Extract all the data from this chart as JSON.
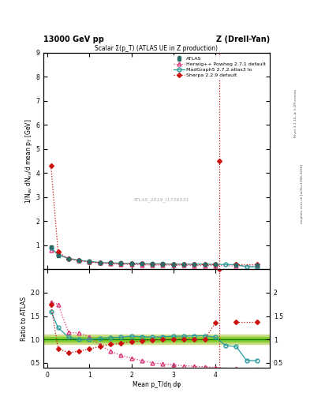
{
  "title_top_left": "13000 GeV pp",
  "title_top_right": "Z (Drell-Yan)",
  "plot_title": "Scalar Σ(p_T) (ATLAS UE in Z production)",
  "watermark": "ATLAS_2019_I1736531",
  "ylabel_main": "1/N_{ev} dN_{ev}/d mean p_T [GeV⁻¹]",
  "ylabel_ratio": "Ratio to ATLAS",
  "xlabel": "Mean p_T/dη dφ",
  "right_label_top": "Rivet 3.1.10, ≥ 3.1M events",
  "right_label_bot": "mcplots.cern.ch [arXiv:1306.3436]",
  "atlas_x": [
    0.08,
    0.25,
    0.5,
    0.75,
    1.0,
    1.25,
    1.5,
    1.75,
    2.0,
    2.25,
    2.5,
    2.75,
    3.0,
    3.25,
    3.5,
    3.75,
    4.0,
    4.5,
    5.0
  ],
  "atlas_y": [
    0.92,
    0.55,
    0.42,
    0.35,
    0.3,
    0.27,
    0.25,
    0.24,
    0.23,
    0.22,
    0.21,
    0.21,
    0.2,
    0.2,
    0.19,
    0.19,
    0.19,
    0.18,
    0.18
  ],
  "atlas_yerr": [
    0.04,
    0.02,
    0.015,
    0.01,
    0.01,
    0.01,
    0.01,
    0.01,
    0.01,
    0.01,
    0.01,
    0.01,
    0.01,
    0.01,
    0.01,
    0.01,
    0.01,
    0.01,
    0.01
  ],
  "herwig_x": [
    0.08,
    0.25,
    0.5,
    0.75,
    1.0,
    1.25,
    1.5,
    1.75,
    2.0,
    2.25,
    2.5,
    2.75,
    3.0,
    3.25,
    3.5,
    3.75,
    4.0,
    4.5,
    5.0
  ],
  "herwig_y": [
    0.8,
    0.62,
    0.46,
    0.38,
    0.3,
    0.25,
    0.22,
    0.2,
    0.19,
    0.18,
    0.17,
    0.17,
    0.16,
    0.16,
    0.15,
    0.15,
    0.15,
    0.13,
    0.13
  ],
  "madgraph_x": [
    0.08,
    0.25,
    0.5,
    0.75,
    1.0,
    1.25,
    1.5,
    1.75,
    2.0,
    2.25,
    2.5,
    2.75,
    3.0,
    3.25,
    3.5,
    3.75,
    4.0,
    4.25,
    4.5,
    4.75,
    5.0
  ],
  "madgraph_y": [
    0.9,
    0.6,
    0.44,
    0.37,
    0.32,
    0.28,
    0.26,
    0.25,
    0.24,
    0.23,
    0.22,
    0.22,
    0.21,
    0.21,
    0.21,
    0.21,
    0.2,
    0.19,
    0.19,
    0.1,
    0.1
  ],
  "sherpa_x": [
    0.08,
    0.25,
    0.5,
    0.75,
    1.0,
    1.25,
    1.5,
    1.75,
    2.0,
    2.25,
    2.5,
    2.75,
    3.0,
    3.25,
    3.5,
    3.75,
    4.0,
    4.5,
    5.0
  ],
  "sherpa_y": [
    4.3,
    0.72,
    0.42,
    0.35,
    0.3,
    0.27,
    0.25,
    0.24,
    0.23,
    0.22,
    0.21,
    0.21,
    0.2,
    0.2,
    0.19,
    0.19,
    0.19,
    0.19,
    0.19
  ],
  "sherpa_spike_x": [
    4.1
  ],
  "sherpa_spike_y": [
    4.5
  ],
  "herwig_ratio": [
    1.8,
    1.75,
    1.15,
    1.14,
    1.06,
    0.88,
    0.75,
    0.66,
    0.6,
    0.55,
    0.5,
    0.48,
    0.46,
    0.44,
    0.43,
    0.42,
    0.4,
    0.38,
    0.37
  ],
  "madgraph_ratio": [
    1.6,
    1.25,
    1.05,
    1.0,
    1.0,
    1.02,
    1.04,
    1.05,
    1.07,
    1.06,
    1.05,
    1.06,
    1.07,
    1.07,
    1.08,
    1.08,
    1.05,
    0.87,
    0.85,
    0.55,
    0.55
  ],
  "sherpa_ratio": [
    1.75,
    0.8,
    0.72,
    0.75,
    0.8,
    0.85,
    0.9,
    0.92,
    0.95,
    0.97,
    0.99,
    1.0,
    1.01,
    1.01,
    1.0,
    1.0,
    1.35,
    1.38,
    1.38
  ],
  "sherpa_ratio_spike_x": [
    4.1
  ],
  "sherpa_ratio_spike_y": [
    4.8
  ],
  "color_atlas": "#2d6b6b",
  "color_herwig": "#dd3377",
  "color_madgraph": "#2d9b9b",
  "color_sherpa": "#cc1111",
  "color_band_inner": "#88cc33",
  "color_band_outer": "#ccdd88",
  "main_ylim": [
    0,
    9
  ],
  "ratio_ylim": [
    0.4,
    2.5
  ],
  "xlim": [
    -0.1,
    5.3
  ],
  "main_yticks": [
    1,
    2,
    3,
    4,
    5,
    6,
    7,
    8,
    9
  ],
  "ratio_yticks": [
    0.5,
    1.0,
    1.5,
    2.0
  ],
  "xticks": [
    0,
    1,
    2,
    3,
    4
  ]
}
